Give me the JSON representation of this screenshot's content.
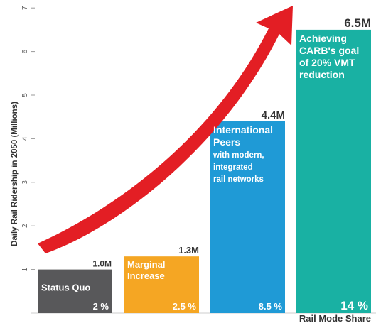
{
  "chart_data": {
    "type": "bar",
    "title": "",
    "ylabel": "Daily Rail Ridership in 2050 (Millions)",
    "xlabel": "Rail Mode Share",
    "ylim": [
      0,
      7
    ],
    "yticks": [
      "1",
      "2",
      "3",
      "4",
      "5",
      "6",
      "7"
    ],
    "grid": false,
    "legend": "none",
    "bars": [
      {
        "category": "Status Quo",
        "desc_lines": [
          "Status Quo"
        ],
        "value": 1.0,
        "value_label": "1.0M",
        "share": "2 %",
        "color": "#58585a"
      },
      {
        "category": "Marginal Increase",
        "desc_lines": [
          "Marginal",
          "Increase"
        ],
        "value": 1.3,
        "value_label": "1.3M",
        "share": "2.5 %",
        "color": "#f5a623"
      },
      {
        "category": "International Peers with modern, integrated rail networks",
        "desc_lines": [
          "International",
          "Peers",
          "with modern,",
          " integrated",
          "rail networks"
        ],
        "value": 4.4,
        "value_label": "4.4M",
        "share": "8.5 %",
        "color": "#1f9ad6"
      },
      {
        "category": "Achieving CARB's goal of 20% VMT reduction",
        "desc_lines": [
          "Achieving",
          "CARB's goal",
          "of 20% VMT",
          "reduction"
        ],
        "value": 6.5,
        "value_label": "6.5M",
        "share": "14 %",
        "color": "#19b1a3"
      }
    ],
    "annotations": [
      {
        "type": "arrow",
        "color": "#e31e24",
        "meaning": "upward trend"
      }
    ]
  }
}
